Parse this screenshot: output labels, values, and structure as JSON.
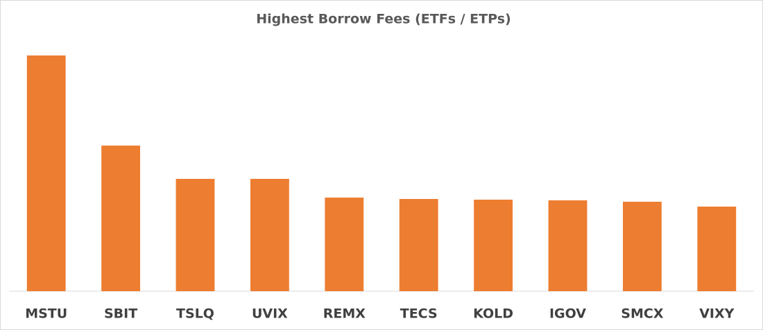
{
  "chart_data": {
    "type": "bar",
    "title": "Highest Borrow Fees (ETFs / ETPs)",
    "categories": [
      "MSTU",
      "SBIT",
      "TSLQ",
      "UVIX",
      "REMX",
      "TECS",
      "KOLD",
      "IGOV",
      "SMCX",
      "VIXY"
    ],
    "values": [
      340,
      210,
      162,
      162,
      135,
      133,
      132,
      131,
      129,
      122
    ],
    "color": "#ed7d31",
    "ylim": [
      0,
      360
    ]
  }
}
